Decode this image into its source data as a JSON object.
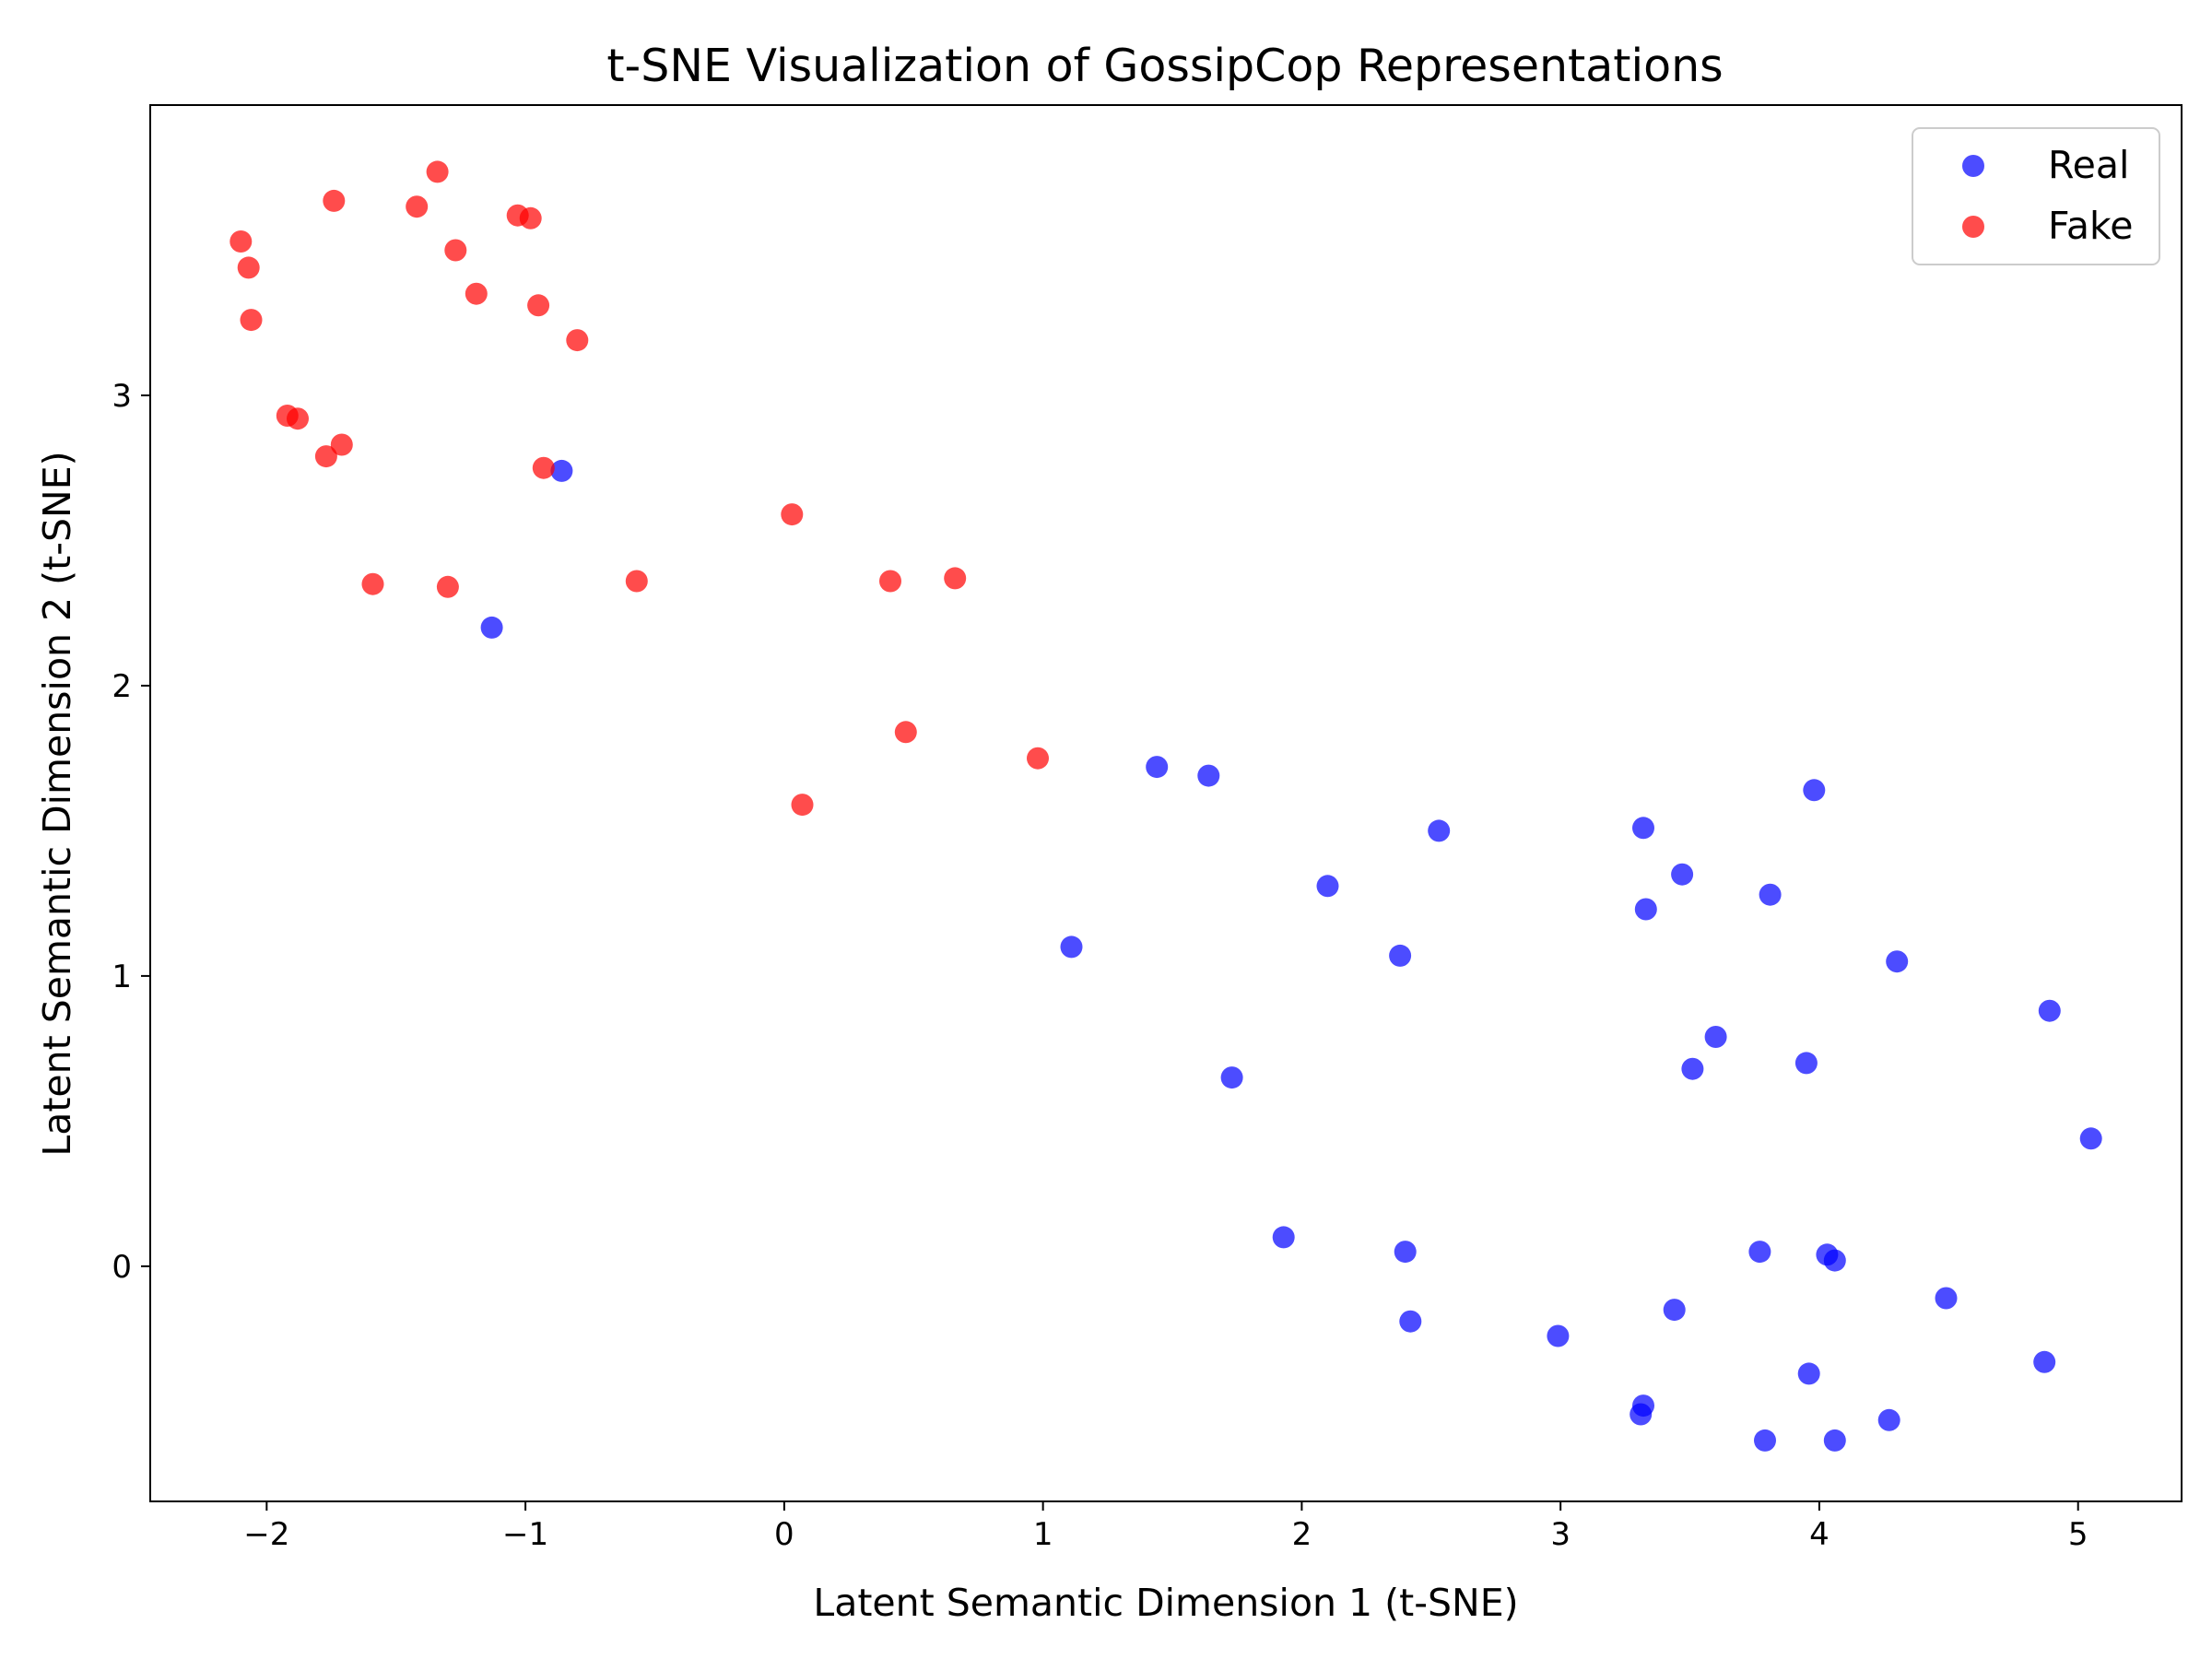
{
  "chart_data": {
    "type": "scatter",
    "title": "t-SNE Visualization of GossipCop Representations",
    "xlabel": "Latent Semantic Dimension 1 (t-SNE)",
    "ylabel": "Latent Semantic Dimension 2 (t-SNE)",
    "xlim": [
      -2.45,
      5.4
    ],
    "ylim": [
      -0.81,
      4.0
    ],
    "xticks": [
      -2,
      -1,
      0,
      1,
      2,
      3,
      4,
      5
    ],
    "xtick_labels": [
      "−2",
      "−1",
      "0",
      "1",
      "2",
      "3",
      "4",
      "5"
    ],
    "yticks": [
      0,
      1,
      2,
      3
    ],
    "ytick_labels": [
      "0",
      "1",
      "2",
      "3"
    ],
    "grid": false,
    "legend_position": "top-right",
    "series": [
      {
        "name": "Real",
        "color": "#0000ff",
        "points": [
          [
            -0.86,
            2.74
          ],
          [
            -1.13,
            2.2
          ],
          [
            1.11,
            1.1
          ],
          [
            1.44,
            1.72
          ],
          [
            1.64,
            1.69
          ],
          [
            1.73,
            0.65
          ],
          [
            1.93,
            0.1
          ],
          [
            2.1,
            1.31
          ],
          [
            2.38,
            1.07
          ],
          [
            2.4,
            0.05
          ],
          [
            2.42,
            -0.19
          ],
          [
            2.53,
            1.5
          ],
          [
            2.99,
            -0.24
          ],
          [
            3.31,
            -0.51
          ],
          [
            3.32,
            -0.48
          ],
          [
            3.32,
            1.51
          ],
          [
            3.33,
            1.23
          ],
          [
            3.44,
            -0.15
          ],
          [
            3.47,
            1.35
          ],
          [
            3.51,
            0.68
          ],
          [
            3.6,
            0.79
          ],
          [
            3.77,
            0.05
          ],
          [
            3.79,
            -0.6
          ],
          [
            3.81,
            1.28
          ],
          [
            3.95,
            0.7
          ],
          [
            3.96,
            -0.37
          ],
          [
            3.98,
            1.64
          ],
          [
            4.03,
            0.04
          ],
          [
            4.06,
            0.02
          ],
          [
            4.06,
            -0.6
          ],
          [
            4.27,
            -0.53
          ],
          [
            4.3,
            1.05
          ],
          [
            4.49,
            -0.11
          ],
          [
            4.87,
            -0.33
          ],
          [
            4.89,
            0.88
          ],
          [
            5.05,
            0.44
          ]
        ]
      },
      {
        "name": "Fake",
        "color": "#ff0000",
        "points": [
          [
            -2.1,
            3.53
          ],
          [
            -2.07,
            3.44
          ],
          [
            -2.06,
            3.26
          ],
          [
            -1.92,
            2.93
          ],
          [
            -1.88,
            2.92
          ],
          [
            -1.77,
            2.79
          ],
          [
            -1.74,
            3.67
          ],
          [
            -1.71,
            2.83
          ],
          [
            -1.59,
            2.35
          ],
          [
            -1.42,
            3.65
          ],
          [
            -1.34,
            3.77
          ],
          [
            -1.3,
            2.34
          ],
          [
            -1.27,
            3.5
          ],
          [
            -1.19,
            3.35
          ],
          [
            -1.03,
            3.62
          ],
          [
            -0.98,
            3.61
          ],
          [
            -0.95,
            3.31
          ],
          [
            -0.93,
            2.75
          ],
          [
            -0.8,
            3.19
          ],
          [
            -0.57,
            2.36
          ],
          [
            0.03,
            2.59
          ],
          [
            0.07,
            1.59
          ],
          [
            0.41,
            2.36
          ],
          [
            0.47,
            1.84
          ],
          [
            0.66,
            2.37
          ],
          [
            0.98,
            1.75
          ]
        ]
      }
    ]
  }
}
